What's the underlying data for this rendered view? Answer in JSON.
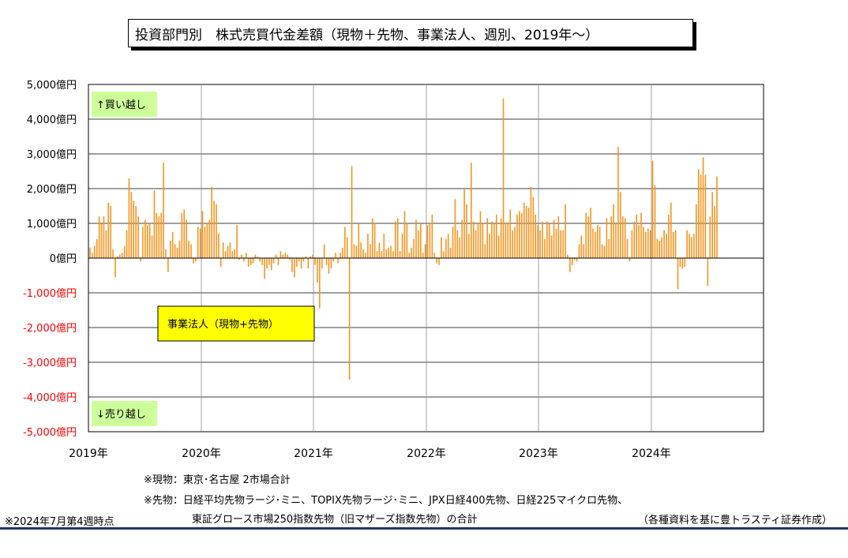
{
  "title": "投資部門別　株式売買代金差額（現物＋先物、事業法人、週別、2019年〜）",
  "labels": {
    "buy": "↑買い越し",
    "sell": "↓売り越し",
    "series_label": "事業法人（現物+先物）"
  },
  "notes": {
    "spot": "※現物：東京･名古屋 2市場合計",
    "futures_1": "※先物：日経平均先物ラージ･ミニ、TOPIX先物ラージ･ミニ、JPX日経400先物、日経225マイクロ先物、",
    "futures_2": "東証グロース市場250指数先物（旧マザーズ指数先物）の合計",
    "asof": "※2024年7月第4週時点",
    "source": "（各種資料を基に豊トラスティ証券作成）"
  },
  "colors": {
    "bar": "#f7941d",
    "label_box": "#ccff99",
    "series_box": "#ffff00",
    "negative_tick": "#ff0000",
    "rule": "#1f3864"
  },
  "chart_data": {
    "type": "bar",
    "unit": "億円",
    "ylim": [
      -5000,
      5000
    ],
    "yticks": [
      {
        "value": 5000,
        "label": "5,000億円"
      },
      {
        "value": 4000,
        "label": "4,000億円"
      },
      {
        "value": 3000,
        "label": "3,000億円"
      },
      {
        "value": 2000,
        "label": "2,000億円"
      },
      {
        "value": 1000,
        "label": "1,000億円"
      },
      {
        "value": 0,
        "label": "0億円"
      },
      {
        "value": -1000,
        "label": "-1,000億円"
      },
      {
        "value": -2000,
        "label": "-2,000億円"
      },
      {
        "value": -3000,
        "label": "-3,000億円"
      },
      {
        "value": -4000,
        "label": "-4,000億円"
      },
      {
        "value": -5000,
        "label": "-5,000億円"
      }
    ],
    "xticks": [
      "2019年",
      "2020年",
      "2021年",
      "2022年",
      "2023年",
      "2024年"
    ],
    "grid": true,
    "series": [
      {
        "values": [
          300,
          150,
          350,
          550,
          1200,
          1000,
          1200,
          800,
          1600,
          1500,
          250,
          -550,
          50,
          100,
          150,
          350,
          800,
          2300,
          1900,
          1650,
          1500,
          1200,
          -100,
          900,
          1100,
          950,
          1000,
          650,
          1950,
          1300,
          1200,
          1300,
          2750,
          250,
          -400,
          500,
          750,
          400,
          300,
          500,
          1300,
          1400,
          1100,
          500,
          400,
          -150,
          -100,
          900,
          850,
          1350,
          900,
          1000,
          1100,
          2050,
          1650,
          1550,
          700,
          -250,
          450,
          200,
          350,
          450,
          200,
          250,
          950,
          -50,
          100,
          -100,
          150,
          -250,
          -200,
          -150,
          100,
          50,
          -100,
          -200,
          -600,
          -300,
          -200,
          -350,
          -150,
          100,
          -200,
          200,
          100,
          150,
          100,
          -50,
          -400,
          -550,
          -250,
          -100,
          -300,
          -100,
          50,
          -300,
          50,
          100,
          -200,
          -700,
          -1450,
          -300,
          400,
          -200,
          -450,
          -300,
          -100,
          150,
          -150,
          150,
          300,
          900,
          600,
          -3500,
          2650,
          400,
          350,
          1000,
          450,
          250,
          150,
          700,
          400,
          1150,
          1000,
          200,
          450,
          200,
          700,
          250,
          300,
          350,
          200,
          1050,
          1150,
          200,
          700,
          1350,
          1000,
          150,
          300,
          550,
          1100,
          800,
          1000,
          150,
          400,
          950,
          1000,
          1250,
          150,
          -150,
          -200,
          600,
          200,
          550,
          700,
          300,
          900,
          1700,
          800,
          600,
          1100,
          2000,
          1550,
          700,
          2750,
          1050,
          800,
          1000,
          1350,
          1000,
          400,
          1150,
          700,
          1050,
          1000,
          1250,
          650,
          1150,
          4600,
          1000,
          1000,
          1400,
          800,
          900,
          1250,
          1350,
          1300,
          1600,
          1500,
          1450,
          2050,
          1750,
          1250,
          950,
          800,
          1050,
          550,
          1050,
          1000,
          650,
          1100,
          850,
          1200,
          800,
          800,
          1550,
          100,
          -400,
          -200,
          -50,
          -100,
          400,
          650,
          400,
          1300,
          1200,
          1450,
          850,
          750,
          950,
          900,
          400,
          350,
          1150,
          550,
          1200,
          1550,
          1000,
          3200,
          1900,
          1200,
          1150,
          550,
          -100,
          800,
          1050,
          1250,
          950,
          1300,
          900,
          750,
          850,
          800,
          2800,
          2100,
          550,
          500,
          600,
          800,
          700,
          1250,
          1600,
          750,
          800,
          -900,
          -250,
          -300,
          -250,
          800,
          700,
          600,
          700,
          1550,
          2550,
          2400,
          2900,
          2400,
          -800,
          1200,
          1900,
          1500,
          2350
        ]
      }
    ]
  }
}
